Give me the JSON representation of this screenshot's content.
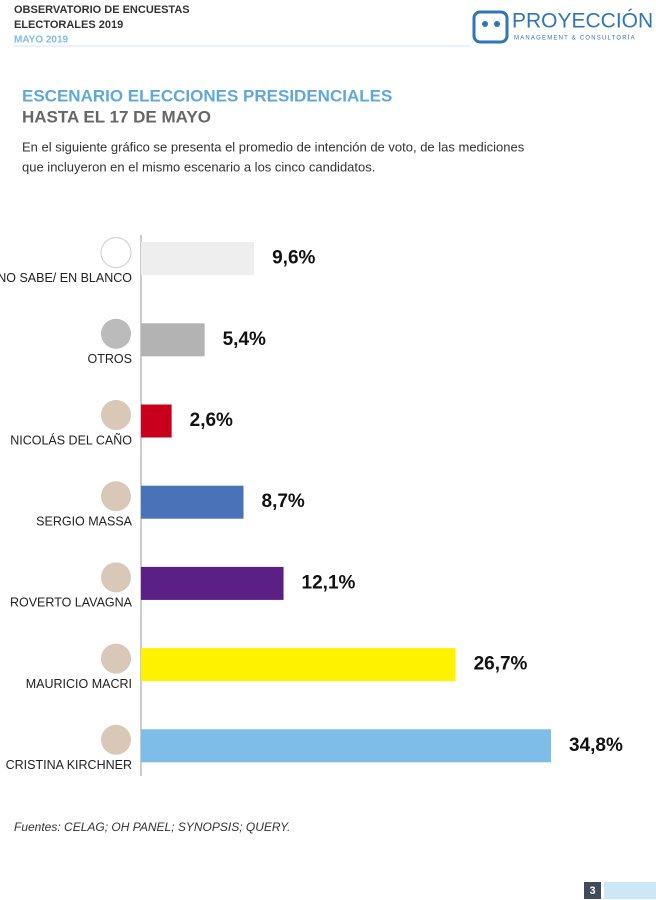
{
  "header": {
    "lines": [
      "OBSERVATORIO DE ENCUESTAS",
      "ELECTORALES 2019",
      "MAYO 2019"
    ],
    "logo": "PROYECCIÓN",
    "logo_sub": "MANAGEMENT & CONSULTORÍA"
  },
  "chart_data": {
    "type": "bar",
    "orientation": "horizontal",
    "title": "ESCENARIO ELECCIONES PRESIDENCIALES",
    "subtitle": "HASTA EL 17 DE MAYO",
    "description": [
      "En el siguiente gráfico se presenta el promedio de intención de voto, de las mediciones",
      "que incluyeron en el mismo escenario a los cinco candidatos."
    ],
    "categories": [
      "NO SABE/ EN BLANCO",
      "OTROS",
      "NICOLÁS DEL CAÑO",
      "SERGIO MASSA",
      "ROVERTO LAVAGNA",
      "MAURICIO MACRI",
      "CRISTINA KIRCHNER"
    ],
    "values": [
      9.6,
      5.4,
      2.6,
      8.7,
      12.1,
      26.7,
      34.8
    ],
    "value_labels": [
      "9,6%",
      "5,4%",
      "2,6%",
      "8,7%",
      "12,1%",
      "26,7%",
      "34,8%"
    ],
    "colors": [
      "#eeeeee",
      "#b3b3b3",
      "#c8001e",
      "#4a72b8",
      "#5b1f86",
      "#fff200",
      "#7dbde8"
    ]
  },
  "source": "Fuentes: CELAG; OH PANEL; SYNOPSIS; QUERY.",
  "page_number": "3"
}
